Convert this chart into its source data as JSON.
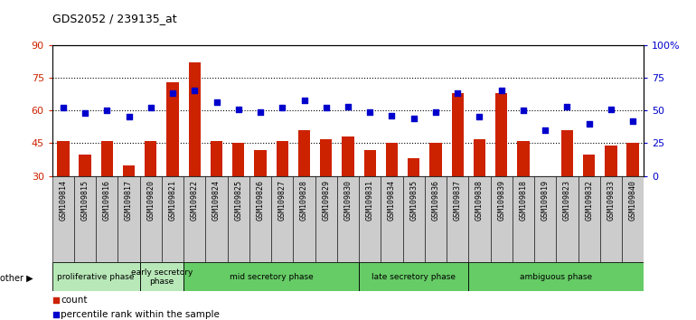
{
  "title": "GDS2052 / 239135_at",
  "samples": [
    "GSM109814",
    "GSM109815",
    "GSM109816",
    "GSM109817",
    "GSM109820",
    "GSM109821",
    "GSM109822",
    "GSM109824",
    "GSM109825",
    "GSM109826",
    "GSM109827",
    "GSM109828",
    "GSM109829",
    "GSM109830",
    "GSM109831",
    "GSM109834",
    "GSM109835",
    "GSM109836",
    "GSM109837",
    "GSM109838",
    "GSM109839",
    "GSM109818",
    "GSM109819",
    "GSM109823",
    "GSM109832",
    "GSM109833",
    "GSM109840"
  ],
  "counts": [
    46,
    40,
    46,
    35,
    46,
    73,
    82,
    46,
    45,
    42,
    46,
    51,
    47,
    48,
    42,
    45,
    38,
    45,
    68,
    47,
    68,
    46,
    30,
    51,
    40,
    44,
    45
  ],
  "percentiles": [
    52,
    48,
    50,
    45,
    52,
    63,
    65,
    56,
    51,
    49,
    52,
    58,
    52,
    53,
    49,
    46,
    44,
    49,
    63,
    45,
    65,
    50,
    35,
    53,
    40,
    51,
    42
  ],
  "ylim_left": [
    30,
    90
  ],
  "ylim_right": [
    0,
    100
  ],
  "yticks_left": [
    30,
    45,
    60,
    75,
    90
  ],
  "yticks_right": [
    0,
    25,
    50,
    75,
    100
  ],
  "ytick_labels_right": [
    "0",
    "25",
    "50",
    "75",
    "100%"
  ],
  "bar_color": "#cc2200",
  "dot_color": "#0000cc",
  "groups": [
    {
      "label": "proliferative phase",
      "start": 0,
      "end": 4,
      "color": "#b8e8b8"
    },
    {
      "label": "early secretory\nphase",
      "start": 4,
      "end": 6,
      "color": "#b8e8b8"
    },
    {
      "label": "mid secretory phase",
      "start": 6,
      "end": 14,
      "color": "#66cc66"
    },
    {
      "label": "late secretory phase",
      "start": 14,
      "end": 19,
      "color": "#66cc66"
    },
    {
      "label": "ambiguous phase",
      "start": 19,
      "end": 27,
      "color": "#66cc66"
    }
  ],
  "bar_width": 0.55,
  "plot_bg": "#ffffff",
  "tick_bg": "#cccccc"
}
